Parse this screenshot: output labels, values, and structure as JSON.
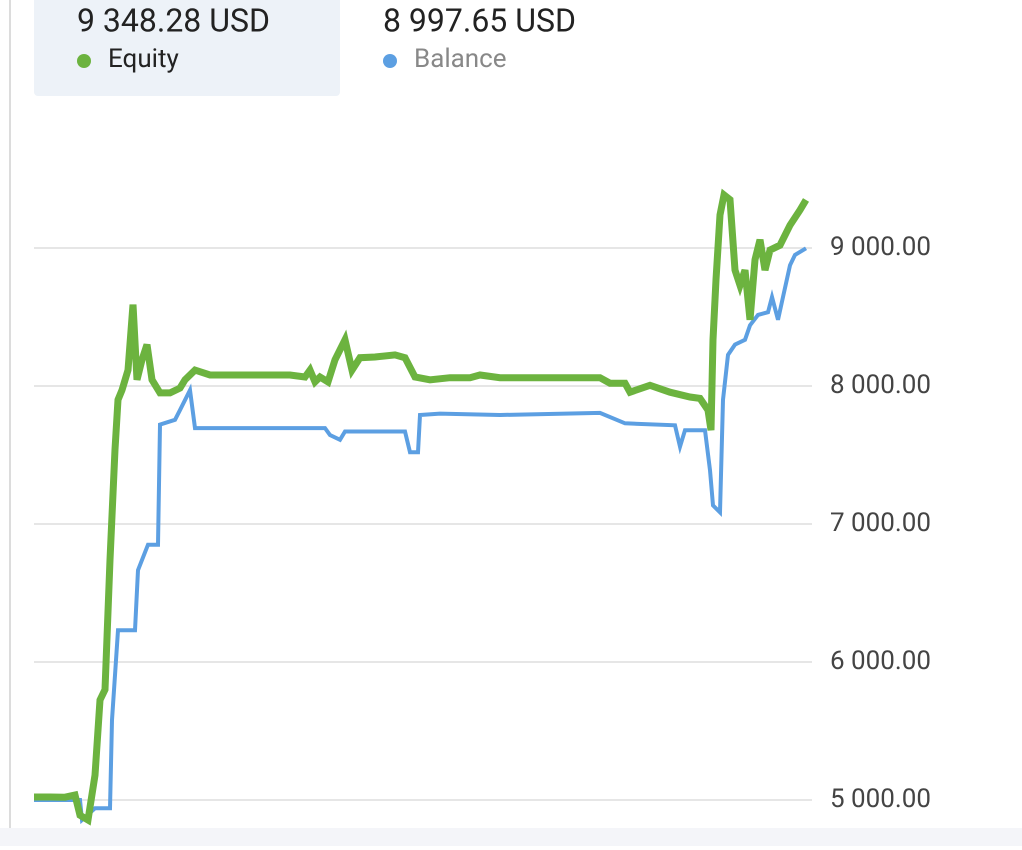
{
  "chart_data": {
    "type": "line",
    "xlim": [
      0,
      772
    ],
    "ylim": [
      4800,
      10000
    ],
    "yticks": [
      {
        "value": 5000,
        "label": "5 000.00"
      },
      {
        "value": 6000,
        "label": "6 000.00"
      },
      {
        "value": 7000,
        "label": "7 000.00"
      },
      {
        "value": 8000,
        "label": "8 000.00"
      },
      {
        "value": 9000,
        "label": "9 000.00"
      }
    ],
    "grid": true,
    "series": [
      {
        "name": "Equity",
        "current_label": "9 348.28 USD",
        "color": "#6cb33f",
        "x": [
          0,
          16,
          31,
          41,
          46,
          54,
          61,
          66,
          71,
          76,
          81,
          84,
          88,
          94,
          99,
          103,
          108,
          113,
          118,
          126,
          136,
          146,
          151,
          161,
          176,
          196,
          226,
          256,
          271,
          276,
          281,
          286,
          294,
          301,
          311,
          318,
          326,
          341,
          361,
          371,
          381,
          396,
          416,
          436,
          446,
          466,
          516,
          566,
          576,
          591,
          596,
          616,
          636,
          656,
          666,
          674,
          677,
          679,
          682,
          686,
          690,
          696,
          701,
          706,
          711,
          716,
          721,
          726,
          731,
          736,
          746,
          756,
          766,
          772
        ],
        "values": [
          5022,
          5022,
          5020,
          5036,
          4890,
          4855,
          5180,
          5725,
          5800,
          6740,
          7540,
          7900,
          7970,
          8115,
          8590,
          8045,
          8190,
          8300,
          8045,
          7950,
          7950,
          7985,
          8045,
          8115,
          8080,
          8080,
          8080,
          8080,
          8065,
          8115,
          8030,
          8065,
          8030,
          8190,
          8335,
          8115,
          8205,
          8210,
          8225,
          8205,
          8065,
          8045,
          8060,
          8060,
          8080,
          8060,
          8060,
          8060,
          8020,
          8020,
          7955,
          8005,
          7955,
          7920,
          7910,
          7825,
          7680,
          8335,
          8770,
          9240,
          9385,
          9350,
          8840,
          8730,
          8840,
          8480,
          8915,
          9060,
          8840,
          8985,
          9020,
          9165,
          9275,
          9348.28
        ]
      },
      {
        "name": "Balance",
        "current_label": "8 997.65 USD",
        "color": "#5c9fe2",
        "x": [
          0,
          46,
          48,
          61,
          76,
          78,
          84,
          101,
          104,
          114,
          124,
          126,
          141,
          146,
          156,
          161,
          216,
          291,
          296,
          306,
          311,
          326,
          371,
          376,
          384,
          386,
          406,
          466,
          566,
          591,
          641,
          646,
          651,
          671,
          676,
          679,
          686,
          689,
          694,
          701,
          711,
          716,
          724,
          734,
          738,
          744,
          749,
          756,
          761,
          772
        ],
        "values": [
          5000,
          5000,
          4855,
          4940,
          4940,
          5580,
          6230,
          6230,
          6665,
          6850,
          6850,
          7720,
          7755,
          7825,
          7970,
          7695,
          7695,
          7695,
          7645,
          7610,
          7670,
          7670,
          7670,
          7520,
          7520,
          7790,
          7800,
          7790,
          7805,
          7730,
          7715,
          7560,
          7680,
          7680,
          7390,
          7135,
          7085,
          7900,
          8225,
          8300,
          8335,
          8440,
          8515,
          8535,
          8645,
          8480,
          8645,
          8875,
          8950,
          8997.65
        ]
      }
    ]
  }
}
